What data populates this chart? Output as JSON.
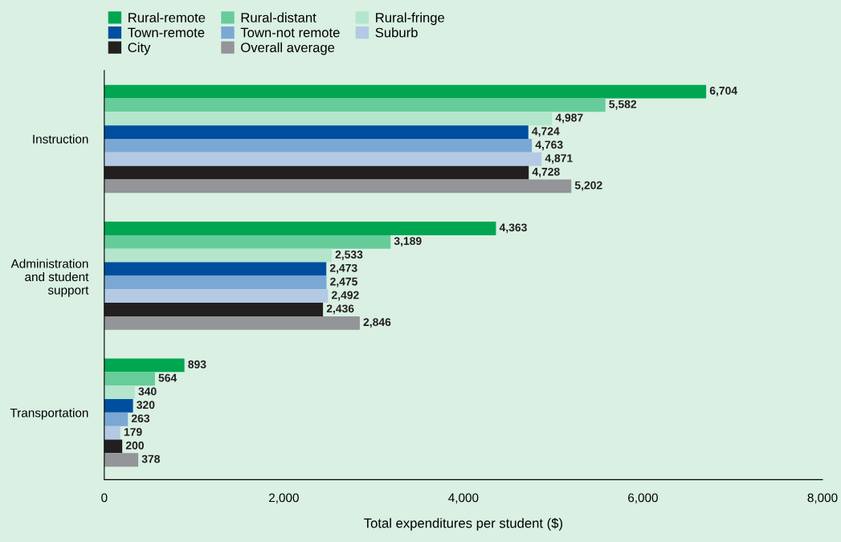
{
  "chart_data": {
    "type": "bar",
    "orientation": "horizontal",
    "xlabel": "Total expenditures per student ($)",
    "categories": [
      "Instruction",
      "Administration\nand student\nsupport",
      "Transportation"
    ],
    "series": [
      {
        "name": "Rural-remote",
        "color": "#00a651",
        "values": [
          6704,
          4363,
          893
        ],
        "value_labels": [
          "6,704",
          "4,363",
          "893"
        ]
      },
      {
        "name": "Rural-distant",
        "color": "#66cc99",
        "values": [
          5582,
          3189,
          564
        ],
        "value_labels": [
          "5,582",
          "3,189",
          "564"
        ]
      },
      {
        "name": "Rural-fringe",
        "color": "#b3e6cc",
        "values": [
          4987,
          2533,
          340
        ],
        "value_labels": [
          "4,987",
          "2,533",
          "340"
        ]
      },
      {
        "name": "Town-remote",
        "color": "#004f9f",
        "values": [
          4724,
          2473,
          320
        ],
        "value_labels": [
          "4,724",
          "2,473",
          "320"
        ]
      },
      {
        "name": "Town-not remote",
        "color": "#7ba7d4",
        "values": [
          4763,
          2475,
          263
        ],
        "value_labels": [
          "4,763",
          "2,475",
          "263"
        ]
      },
      {
        "name": "Suburb",
        "color": "#b4c9e4",
        "values": [
          4871,
          2492,
          179
        ],
        "value_labels": [
          "4,871",
          "2,492",
          "179"
        ]
      },
      {
        "name": "City",
        "color": "#231f20",
        "values": [
          4728,
          2436,
          200
        ],
        "value_labels": [
          "4,728",
          "2,436",
          "200"
        ]
      },
      {
        "name": "Overall average",
        "color": "#939598",
        "values": [
          5202,
          2846,
          378
        ],
        "value_labels": [
          "5,202",
          "2,846",
          "378"
        ]
      }
    ],
    "xlim": [
      0,
      8000
    ],
    "xticks": [
      {
        "value": 0,
        "label": "0"
      },
      {
        "value": 2000,
        "label": "2,000"
      },
      {
        "value": 4000,
        "label": "4,000"
      },
      {
        "value": 6000,
        "label": "6,000"
      },
      {
        "value": 8000,
        "label": "8,000"
      }
    ],
    "grid": false,
    "legend": "top left"
  }
}
